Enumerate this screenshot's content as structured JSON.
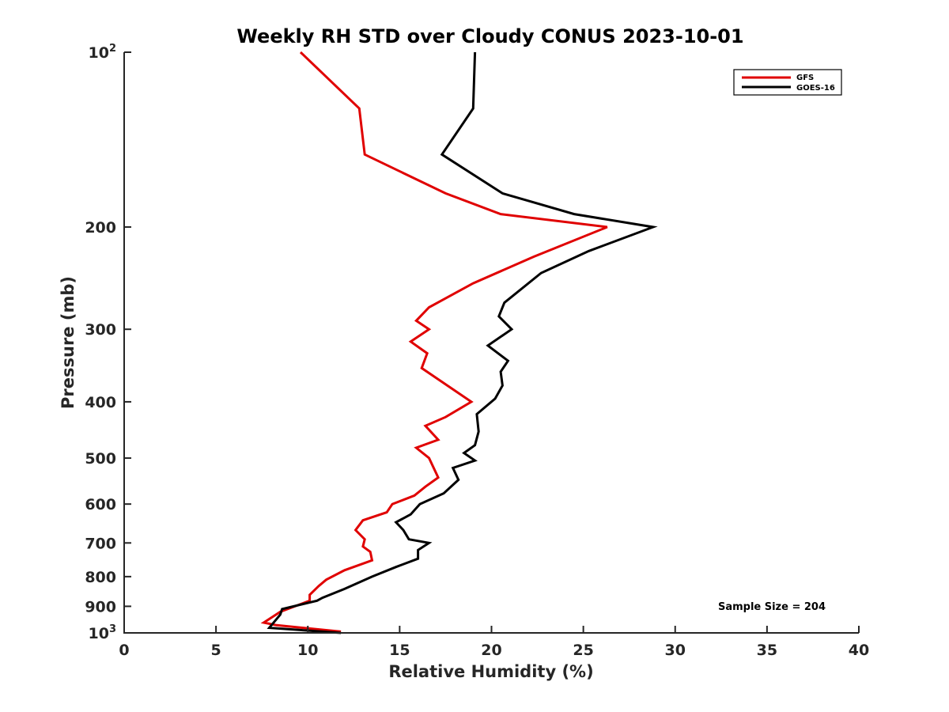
{
  "chart_data": {
    "type": "line",
    "title": "Weekly RH STD over Cloudy CONUS 2023-10-01",
    "xlabel": "Relative Humidity (%)",
    "ylabel": "Pressure (mb)",
    "xlim": [
      0,
      40
    ],
    "ylim": [
      100,
      1000
    ],
    "y_scale": "log",
    "y_reversed": true,
    "grid": false,
    "legend_position": "top-right",
    "x_ticks": [
      0,
      5,
      10,
      15,
      20,
      25,
      30,
      35,
      40
    ],
    "x_tick_labels": [
      "0",
      "5",
      "10",
      "15",
      "20",
      "25",
      "30",
      "35",
      "40"
    ],
    "y_ticks": [
      100,
      200,
      300,
      400,
      500,
      600,
      700,
      800,
      900,
      1000
    ],
    "y_tick_labels": [
      {
        "base": "10",
        "exp": "2"
      },
      {
        "base": "200",
        "exp": ""
      },
      {
        "base": "300",
        "exp": ""
      },
      {
        "base": "400",
        "exp": ""
      },
      {
        "base": "500",
        "exp": ""
      },
      {
        "base": "600",
        "exp": ""
      },
      {
        "base": "700",
        "exp": ""
      },
      {
        "base": "800",
        "exp": ""
      },
      {
        "base": "900",
        "exp": ""
      },
      {
        "base": "10",
        "exp": "3"
      }
    ],
    "annotation": "Sample Size = 204",
    "series": [
      {
        "name": "GFS",
        "color": "#e00000",
        "points": [
          [
            9.6,
            100
          ],
          [
            12.8,
            125
          ],
          [
            13.1,
            150
          ],
          [
            17.5,
            175
          ],
          [
            20.5,
            190
          ],
          [
            26.3,
            200
          ],
          [
            22.3,
            225
          ],
          [
            19.0,
            250
          ],
          [
            16.6,
            275
          ],
          [
            15.9,
            290
          ],
          [
            16.6,
            300
          ],
          [
            15.6,
            315
          ],
          [
            16.5,
            330
          ],
          [
            16.2,
            350
          ],
          [
            18.9,
            400
          ],
          [
            17.5,
            425
          ],
          [
            16.4,
            440
          ],
          [
            17.1,
            465
          ],
          [
            15.9,
            480
          ],
          [
            16.6,
            500
          ],
          [
            17.1,
            540
          ],
          [
            16.4,
            560
          ],
          [
            15.8,
            580
          ],
          [
            14.6,
            600
          ],
          [
            14.3,
            620
          ],
          [
            13.0,
            640
          ],
          [
            12.6,
            665
          ],
          [
            13.1,
            690
          ],
          [
            13.0,
            710
          ],
          [
            13.4,
            725
          ],
          [
            13.5,
            750
          ],
          [
            12.0,
            780
          ],
          [
            11.0,
            810
          ],
          [
            10.6,
            830
          ],
          [
            10.1,
            860
          ],
          [
            10.1,
            880
          ],
          [
            8.5,
            920
          ],
          [
            7.6,
            960
          ],
          [
            8.3,
            970
          ],
          [
            11.8,
            995
          ]
        ]
      },
      {
        "name": "GOES-16",
        "color": "#000000",
        "points": [
          [
            19.1,
            100
          ],
          [
            19.0,
            125
          ],
          [
            17.3,
            150
          ],
          [
            20.6,
            175
          ],
          [
            24.5,
            190
          ],
          [
            28.8,
            200
          ],
          [
            25.3,
            220
          ],
          [
            22.7,
            240
          ],
          [
            20.7,
            270
          ],
          [
            20.4,
            285
          ],
          [
            21.1,
            300
          ],
          [
            19.8,
            320
          ],
          [
            20.9,
            340
          ],
          [
            20.5,
            355
          ],
          [
            20.6,
            375
          ],
          [
            20.2,
            395
          ],
          [
            19.2,
            420
          ],
          [
            19.3,
            450
          ],
          [
            19.1,
            475
          ],
          [
            18.5,
            490
          ],
          [
            19.1,
            505
          ],
          [
            17.9,
            520
          ],
          [
            18.2,
            545
          ],
          [
            17.4,
            575
          ],
          [
            16.1,
            600
          ],
          [
            15.6,
            625
          ],
          [
            14.8,
            645
          ],
          [
            15.2,
            665
          ],
          [
            15.5,
            690
          ],
          [
            16.6,
            700
          ],
          [
            16.0,
            720
          ],
          [
            16.0,
            745
          ],
          [
            14.8,
            770
          ],
          [
            13.5,
            800
          ],
          [
            12.0,
            840
          ],
          [
            10.8,
            870
          ],
          [
            10.5,
            880
          ],
          [
            8.6,
            910
          ],
          [
            8.5,
            930
          ],
          [
            7.9,
            980
          ],
          [
            11.8,
            1000
          ]
        ]
      }
    ]
  }
}
